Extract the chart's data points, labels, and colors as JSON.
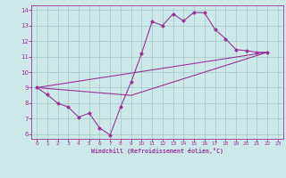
{
  "bg_color": "#cce8e8",
  "grid_color": "#aacccc",
  "line_color": "#993399",
  "xlim": [
    -0.5,
    23.5
  ],
  "ylim": [
    5.7,
    14.3
  ],
  "xticks": [
    0,
    1,
    2,
    3,
    4,
    5,
    6,
    7,
    8,
    9,
    10,
    11,
    12,
    13,
    14,
    15,
    16,
    17,
    18,
    19,
    20,
    21,
    22,
    23
  ],
  "yticks": [
    6,
    7,
    8,
    9,
    10,
    11,
    12,
    13,
    14
  ],
  "xlabel": "Windchill (Refroidissement éolien,°C)",
  "line1_x": [
    0,
    1,
    2,
    3,
    4,
    5,
    6,
    7,
    8,
    9,
    10,
    11,
    12,
    13,
    14,
    15,
    16,
    17,
    18,
    19,
    20,
    21,
    22
  ],
  "line1_y": [
    9.0,
    8.55,
    8.0,
    7.75,
    7.1,
    7.35,
    6.4,
    5.95,
    7.75,
    9.35,
    11.2,
    13.25,
    13.0,
    13.75,
    13.3,
    13.85,
    13.82,
    12.75,
    12.15,
    11.45,
    11.38,
    11.28,
    11.28
  ],
  "line2_x": [
    0,
    22
  ],
  "line2_y": [
    9.0,
    11.28
  ],
  "line3_x": [
    0,
    9,
    22
  ],
  "line3_y": [
    9.0,
    8.5,
    11.28
  ]
}
